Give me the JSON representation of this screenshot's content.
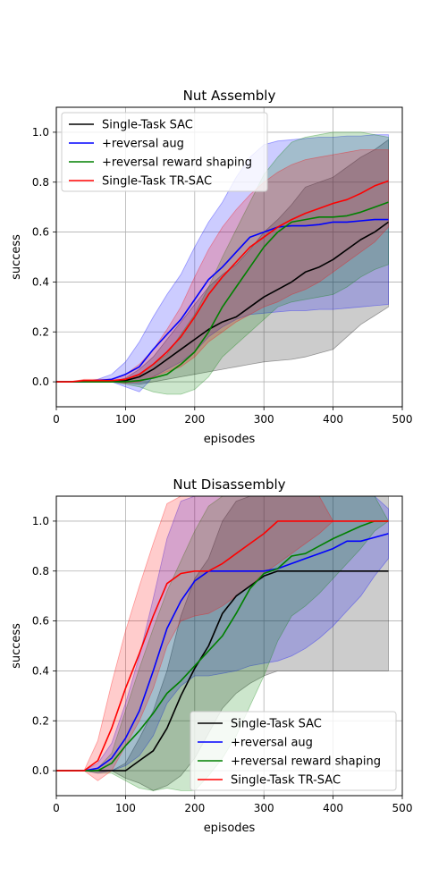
{
  "chart_data": [
    {
      "type": "line",
      "title": "Nut Assembly",
      "xlabel": "episodes",
      "ylabel": "success",
      "xlim": [
        0,
        500
      ],
      "ylim": [
        -0.1,
        1.1
      ],
      "xticks": [
        "0",
        "100",
        "200",
        "300",
        "400",
        "500"
      ],
      "yticks": [
        "0.0",
        "0.2",
        "0.4",
        "0.6",
        "0.8",
        "1.0"
      ],
      "grid": true,
      "legend_position": "top-left",
      "series": [
        {
          "name": "Single-Task SAC",
          "color": "#000000",
          "x": [
            0,
            20,
            40,
            60,
            80,
            100,
            120,
            140,
            160,
            180,
            200,
            220,
            240,
            260,
            280,
            300,
            320,
            340,
            360,
            380,
            400,
            420,
            440,
            460,
            480
          ],
          "y": [
            0,
            0,
            0,
            0,
            0,
            0.005,
            0.02,
            0.05,
            0.09,
            0.13,
            0.17,
            0.21,
            0.24,
            0.26,
            0.3,
            0.34,
            0.37,
            0.4,
            0.44,
            0.46,
            0.49,
            0.53,
            0.57,
            0.6,
            0.64
          ],
          "lower": [
            0,
            0,
            0,
            0,
            0,
            -0.005,
            -0.01,
            0,
            0.01,
            0.02,
            0.03,
            0.04,
            0.05,
            0.06,
            0.07,
            0.08,
            0.085,
            0.09,
            0.1,
            0.115,
            0.13,
            0.18,
            0.23,
            0.265,
            0.3
          ],
          "upper": [
            0,
            0,
            0,
            0,
            0,
            0.015,
            0.05,
            0.1,
            0.17,
            0.24,
            0.31,
            0.38,
            0.43,
            0.47,
            0.53,
            0.6,
            0.65,
            0.71,
            0.78,
            0.8,
            0.82,
            0.86,
            0.9,
            0.93,
            0.97
          ]
        },
        {
          "name": "+reversal aug",
          "color": "#0000ff",
          "x": [
            0,
            20,
            40,
            60,
            80,
            100,
            120,
            140,
            160,
            180,
            200,
            220,
            240,
            260,
            280,
            300,
            320,
            340,
            360,
            380,
            400,
            420,
            440,
            460,
            480
          ],
          "y": [
            0,
            0,
            0,
            0.005,
            0.01,
            0.03,
            0.06,
            0.13,
            0.19,
            0.25,
            0.33,
            0.41,
            0.46,
            0.52,
            0.58,
            0.6,
            0.62,
            0.625,
            0.625,
            0.63,
            0.64,
            0.64,
            0.645,
            0.65,
            0.65
          ],
          "lower": [
            0,
            0,
            0,
            0,
            0,
            -0.02,
            -0.04,
            0.02,
            0.05,
            0.08,
            0.12,
            0.18,
            0.22,
            0.25,
            0.27,
            0.275,
            0.28,
            0.285,
            0.285,
            0.29,
            0.29,
            0.295,
            0.3,
            0.305,
            0.31
          ],
          "upper": [
            0,
            0,
            0,
            0.01,
            0.03,
            0.08,
            0.16,
            0.26,
            0.35,
            0.43,
            0.54,
            0.64,
            0.72,
            0.82,
            0.9,
            0.95,
            0.965,
            0.97,
            0.975,
            0.98,
            0.98,
            0.985,
            0.985,
            0.99,
            0.99
          ]
        },
        {
          "name": "+reversal reward shaping",
          "color": "#008000",
          "x": [
            0,
            20,
            40,
            60,
            80,
            100,
            120,
            140,
            160,
            180,
            200,
            220,
            240,
            260,
            280,
            300,
            320,
            340,
            360,
            380,
            400,
            420,
            440,
            460,
            480
          ],
          "y": [
            0,
            0,
            0,
            0,
            0,
            0,
            0.005,
            0.015,
            0.03,
            0.07,
            0.12,
            0.2,
            0.3,
            0.38,
            0.46,
            0.54,
            0.6,
            0.64,
            0.65,
            0.66,
            0.66,
            0.665,
            0.68,
            0.7,
            0.72
          ],
          "lower": [
            0,
            0,
            0,
            0,
            0,
            -0.01,
            -0.02,
            -0.04,
            -0.05,
            -0.05,
            -0.03,
            0.02,
            0.1,
            0.15,
            0.2,
            0.25,
            0.3,
            0.32,
            0.33,
            0.34,
            0.35,
            0.38,
            0.42,
            0.45,
            0.47
          ],
          "upper": [
            0,
            0,
            0,
            0,
            0,
            0.01,
            0.03,
            0.07,
            0.11,
            0.19,
            0.27,
            0.38,
            0.5,
            0.61,
            0.72,
            0.83,
            0.9,
            0.96,
            0.98,
            0.99,
            1.0,
            1.0,
            1.0,
            0.99,
            0.98
          ]
        },
        {
          "name": "Single-Task TR-SAC",
          "color": "#ff0000",
          "x": [
            0,
            20,
            40,
            60,
            80,
            100,
            120,
            140,
            160,
            180,
            200,
            220,
            240,
            260,
            280,
            300,
            320,
            340,
            360,
            380,
            400,
            420,
            440,
            460,
            480
          ],
          "y": [
            0,
            0,
            0.005,
            0.005,
            0.005,
            0.01,
            0.03,
            0.07,
            0.12,
            0.18,
            0.26,
            0.35,
            0.42,
            0.48,
            0.54,
            0.58,
            0.62,
            0.65,
            0.675,
            0.695,
            0.715,
            0.73,
            0.755,
            0.785,
            0.805
          ],
          "lower": [
            0,
            0,
            0,
            0,
            0,
            -0.005,
            0,
            0.02,
            0.04,
            0.06,
            0.1,
            0.16,
            0.2,
            0.24,
            0.27,
            0.3,
            0.32,
            0.35,
            0.37,
            0.4,
            0.44,
            0.48,
            0.52,
            0.56,
            0.62
          ],
          "upper": [
            0,
            0,
            0.01,
            0.01,
            0.01,
            0.03,
            0.07,
            0.13,
            0.21,
            0.3,
            0.42,
            0.53,
            0.62,
            0.69,
            0.75,
            0.8,
            0.84,
            0.87,
            0.89,
            0.9,
            0.91,
            0.92,
            0.93,
            0.93,
            0.93
          ]
        }
      ]
    },
    {
      "type": "line",
      "title": "Nut Disassembly",
      "xlabel": "episodes",
      "ylabel": "success",
      "xlim": [
        0,
        500
      ],
      "ylim": [
        -0.1,
        1.1
      ],
      "xticks": [
        "0",
        "100",
        "200",
        "300",
        "400",
        "500"
      ],
      "yticks": [
        "0.0",
        "0.2",
        "0.4",
        "0.6",
        "0.8",
        "1.0"
      ],
      "grid": true,
      "legend_position": "bottom-right",
      "series": [
        {
          "name": "Single-Task SAC",
          "color": "#000000",
          "x": [
            0,
            20,
            40,
            60,
            80,
            100,
            120,
            140,
            160,
            180,
            200,
            220,
            240,
            260,
            280,
            300,
            320,
            340,
            360,
            380,
            400,
            420,
            440,
            460,
            480
          ],
          "y": [
            0,
            0,
            0,
            0,
            0,
            0,
            0.04,
            0.08,
            0.17,
            0.3,
            0.41,
            0.5,
            0.63,
            0.7,
            0.74,
            0.78,
            0.8,
            0.8,
            0.8,
            0.8,
            0.8,
            0.8,
            0.8,
            0.8,
            0.8
          ],
          "lower": [
            0,
            0,
            0,
            0,
            0,
            -0.03,
            -0.05,
            -0.08,
            -0.06,
            -0.02,
            0.05,
            0.15,
            0.25,
            0.31,
            0.35,
            0.38,
            0.4,
            0.4,
            0.4,
            0.4,
            0.4,
            0.4,
            0.4,
            0.4,
            0.4
          ],
          "upper": [
            0,
            0,
            0,
            0,
            0,
            0.03,
            0.13,
            0.24,
            0.4,
            0.62,
            0.77,
            0.85,
            1.0,
            1.08,
            1.1,
            1.1,
            1.1,
            1.1,
            1.1,
            1.1,
            1.1,
            1.1,
            1.1,
            1.1,
            1.1
          ]
        },
        {
          "name": "+reversal aug",
          "color": "#0000ff",
          "x": [
            0,
            20,
            40,
            60,
            80,
            100,
            120,
            140,
            160,
            180,
            200,
            220,
            240,
            260,
            280,
            300,
            320,
            340,
            360,
            380,
            400,
            420,
            440,
            460,
            480
          ],
          "y": [
            0,
            0,
            0,
            0.01,
            0.05,
            0.13,
            0.24,
            0.4,
            0.57,
            0.68,
            0.76,
            0.8,
            0.8,
            0.8,
            0.8,
            0.8,
            0.81,
            0.83,
            0.85,
            0.87,
            0.89,
            0.92,
            0.92,
            0.935,
            0.95
          ],
          "lower": [
            0,
            0,
            0,
            -0.01,
            0,
            0.02,
            0.06,
            0.14,
            0.27,
            0.34,
            0.38,
            0.38,
            0.39,
            0.4,
            0.42,
            0.43,
            0.44,
            0.46,
            0.49,
            0.53,
            0.58,
            0.64,
            0.7,
            0.78,
            0.85
          ],
          "upper": [
            0,
            0,
            0,
            0.03,
            0.11,
            0.27,
            0.46,
            0.69,
            0.93,
            1.08,
            1.1,
            1.1,
            1.1,
            1.1,
            1.1,
            1.1,
            1.1,
            1.1,
            1.1,
            1.1,
            1.1,
            1.1,
            1.1,
            1.1,
            1.05
          ]
        },
        {
          "name": "+reversal reward shaping",
          "color": "#008000",
          "x": [
            0,
            20,
            40,
            60,
            80,
            100,
            120,
            140,
            160,
            180,
            200,
            220,
            240,
            260,
            280,
            300,
            320,
            340,
            360,
            380,
            400,
            420,
            440,
            460,
            480
          ],
          "y": [
            0,
            0,
            0,
            0,
            0.03,
            0.1,
            0.16,
            0.23,
            0.31,
            0.36,
            0.42,
            0.48,
            0.54,
            0.63,
            0.73,
            0.79,
            0.81,
            0.86,
            0.87,
            0.9,
            0.93,
            0.955,
            0.98,
            1.0,
            1.0
          ],
          "lower": [
            0,
            0,
            0,
            -0.01,
            -0.01,
            -0.04,
            -0.07,
            -0.08,
            -0.07,
            -0.08,
            -0.08,
            -0.02,
            0.05,
            0.14,
            0.26,
            0.38,
            0.52,
            0.62,
            0.66,
            0.71,
            0.77,
            0.83,
            0.89,
            0.96,
            1.0
          ],
          "upper": [
            0,
            0,
            0,
            0.01,
            0.07,
            0.24,
            0.41,
            0.57,
            0.72,
            0.84,
            0.96,
            1.06,
            1.1,
            1.1,
            1.1,
            1.1,
            1.1,
            1.1,
            1.1,
            1.1,
            1.1,
            1.1,
            1.1,
            1.1,
            1.0
          ]
        },
        {
          "name": "Single-Task TR-SAC",
          "color": "#ff0000",
          "x": [
            0,
            20,
            40,
            60,
            80,
            100,
            120,
            140,
            160,
            180,
            200,
            220,
            240,
            260,
            280,
            300,
            320,
            340,
            360,
            380,
            400,
            420,
            440,
            460,
            480
          ],
          "y": [
            0,
            0,
            0,
            0.04,
            0.17,
            0.33,
            0.47,
            0.62,
            0.75,
            0.79,
            0.8,
            0.8,
            0.83,
            0.87,
            0.91,
            0.95,
            1.0,
            1.0,
            1.0,
            1.0,
            1.0,
            1.0,
            1.0,
            1.0,
            1.0
          ],
          "lower": [
            0,
            0,
            0,
            -0.04,
            0,
            0.1,
            0.2,
            0.33,
            0.5,
            0.6,
            0.62,
            0.63,
            0.66,
            0.7,
            0.74,
            0.79,
            0.83,
            0.87,
            0.91,
            0.95,
            1.0,
            1.0,
            1.0,
            1.0,
            1.0
          ],
          "upper": [
            0,
            0,
            0,
            0.12,
            0.35,
            0.56,
            0.74,
            0.91,
            1.07,
            1.1,
            1.1,
            1.1,
            1.1,
            1.1,
            1.1,
            1.1,
            1.1,
            1.1,
            1.1,
            1.1,
            1.0,
            1.0,
            1.0,
            1.0,
            1.0
          ]
        }
      ]
    }
  ]
}
